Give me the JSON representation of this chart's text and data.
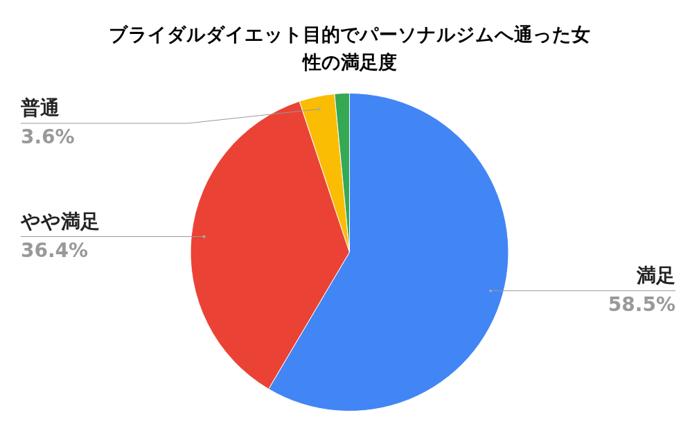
{
  "chart_data": {
    "type": "pie",
    "title": "ブライダルダイエット目的でパーソナルジムへ通った女性の満足度",
    "categories": [
      "満足",
      "やや満足",
      "普通",
      null
    ],
    "values": [
      58.5,
      36.4,
      3.6,
      1.5
    ],
    "value_labels": [
      "58.5%",
      "36.4%",
      "3.6%",
      null
    ],
    "colors": [
      "#4285f4",
      "#ea4335",
      "#fbbc04",
      "#34a853"
    ],
    "legend": false
  }
}
